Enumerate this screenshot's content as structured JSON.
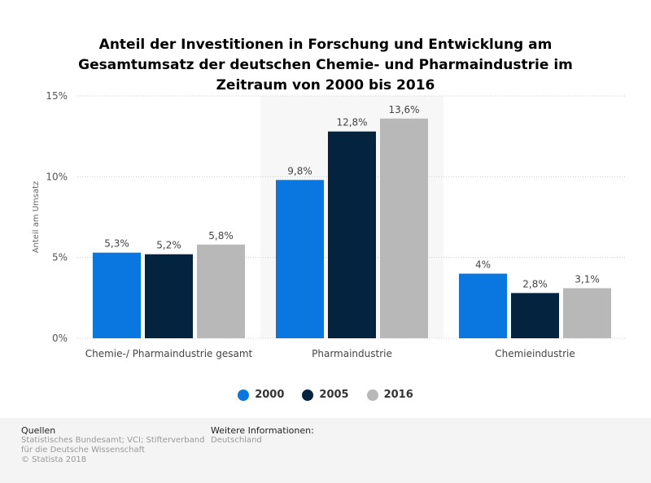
{
  "chart_data": {
    "type": "bar",
    "title": "Anteil der Investitionen in Forschung und Entwicklung am Gesamtumsatz der deutschen Chemie- und Pharmaindustrie im Zeitraum von 2000 bis 2016",
    "categories": [
      "Chemie-/ Pharmaindustrie gesamt",
      "Pharmaindustrie",
      "Chemieindustrie"
    ],
    "series": [
      {
        "name": "2000",
        "color": "#0a77e0",
        "values": [
          5.3,
          9.8,
          4
        ],
        "labels": [
          "5,3%",
          "9,8%",
          "4%"
        ]
      },
      {
        "name": "2005",
        "color": "#04233e",
        "values": [
          5.2,
          12.8,
          2.8
        ],
        "labels": [
          "5,2%",
          "12,8%",
          "2,8%"
        ]
      },
      {
        "name": "2016",
        "color": "#b8b8b8",
        "values": [
          5.8,
          13.6,
          3.1
        ],
        "labels": [
          "5,8%",
          "13,6%",
          "3,1%"
        ]
      }
    ],
    "xlabel": "",
    "ylabel": "Anteil am Umsatz",
    "ylim": [
      0,
      15
    ],
    "yticks": [
      0,
      5,
      10,
      15
    ],
    "ytick_labels": [
      "0%",
      "5%",
      "10%",
      "15%"
    ],
    "grid": true,
    "legend": "bottom"
  },
  "footer": {
    "sources_heading": "Quellen",
    "sources_line1": "Statistisches Bundesamt; VCI; Stifterverband",
    "sources_line2": "für die Deutsche Wissenschaft",
    "copyright": "© Statista 2018",
    "info_heading": "Weitere Informationen:",
    "info_text": "Deutschland"
  }
}
